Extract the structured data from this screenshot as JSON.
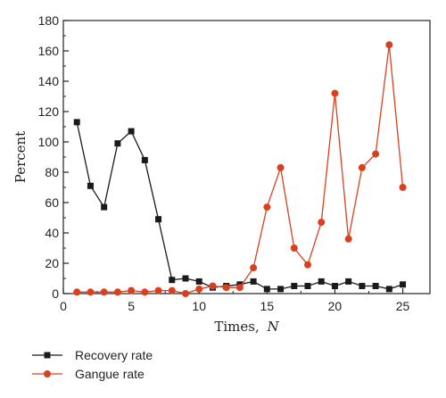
{
  "chart_data": {
    "type": "line",
    "xlabel": "Times,",
    "xlabel_var": "N",
    "ylabel": "Percent",
    "xlim": [
      0,
      27
    ],
    "ylim": [
      0,
      180
    ],
    "xticks": [
      0,
      5,
      10,
      15,
      20,
      25
    ],
    "yticks": [
      0,
      20,
      40,
      60,
      80,
      100,
      120,
      140,
      160,
      180
    ],
    "grid": false,
    "legend_position": "bottom-left",
    "x": [
      1,
      2,
      3,
      4,
      5,
      6,
      7,
      8,
      9,
      10,
      11,
      12,
      13,
      14,
      15,
      16,
      17,
      18,
      19,
      20,
      21,
      22,
      23,
      24,
      25
    ],
    "series": [
      {
        "name": "Recovery rate",
        "color": "#1a1a1a",
        "marker": "square",
        "values": [
          113,
          71,
          57,
          99,
          107,
          88,
          49,
          9,
          10,
          8,
          4,
          5,
          6,
          8,
          3,
          3,
          5,
          5,
          8,
          5,
          8,
          5,
          5,
          3,
          6
        ]
      },
      {
        "name": "Gangue rate",
        "color": "#d9401f",
        "marker": "circle",
        "values": [
          1,
          1,
          1,
          1,
          2,
          1,
          2,
          2,
          0,
          3,
          5,
          4,
          4,
          17,
          57,
          83,
          30,
          19,
          47,
          132,
          36,
          83,
          92,
          164,
          70
        ]
      }
    ]
  }
}
